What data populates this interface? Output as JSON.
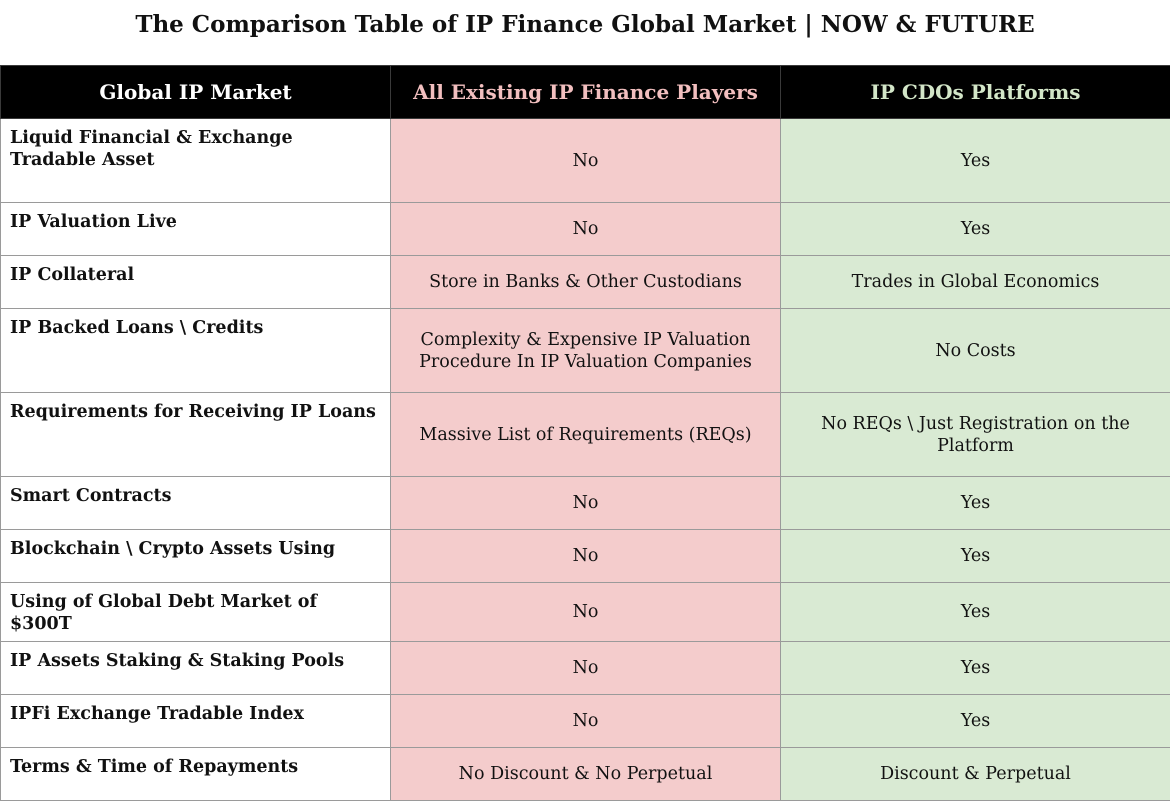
{
  "title": "The Comparison Table of IP Finance Global Market | NOW & FUTURE",
  "table": {
    "headers": {
      "feature": "Global IP Market",
      "existing": "All Existing IP Finance Players",
      "cdo": "IP CDOs Platforms"
    },
    "colors": {
      "header_bg": "#000000",
      "existing_header_text": "#f2bfbf",
      "cdo_header_text": "#d3e6c8",
      "existing_cell_bg": "#f4cccc",
      "cdo_cell_bg": "#d9ead3"
    },
    "rows": [
      {
        "feature": "Liquid Financial & Exchange Tradable Asset",
        "existing": "No",
        "cdo": "Yes"
      },
      {
        "feature": "IP Valuation Live",
        "existing": "No",
        "cdo": "Yes"
      },
      {
        "feature": "IP Collateral",
        "existing": "Store in Banks & Other Custodians",
        "cdo": "Trades in Global Economics"
      },
      {
        "feature": "IP Backed Loans \\ Credits",
        "existing": "Complexity & Expensive IP Valuation Procedure In IP Valuation Companies",
        "cdo": "No Costs"
      },
      {
        "feature": "Requirements for Receiving IP Loans",
        "existing": "Massive List of Requirements (REQs)",
        "cdo": "No REQs \\ Just Registration on the Platform"
      },
      {
        "feature": "Smart Contracts",
        "existing": "No",
        "cdo": "Yes"
      },
      {
        "feature": "Blockchain \\ Crypto Assets Using",
        "existing": "No",
        "cdo": "Yes"
      },
      {
        "feature": "Using of Global Debt Market of $300T",
        "existing": "No",
        "cdo": "Yes"
      },
      {
        "feature": "IP Assets Staking & Staking Pools",
        "existing": "No",
        "cdo": "Yes"
      },
      {
        "feature": "IPFi Exchange Tradable Index",
        "existing": "No",
        "cdo": "Yes"
      },
      {
        "feature": "Terms & Time of Repayments",
        "existing": "No Discount & No Perpetual",
        "cdo": "Discount & Perpetual"
      }
    ]
  }
}
